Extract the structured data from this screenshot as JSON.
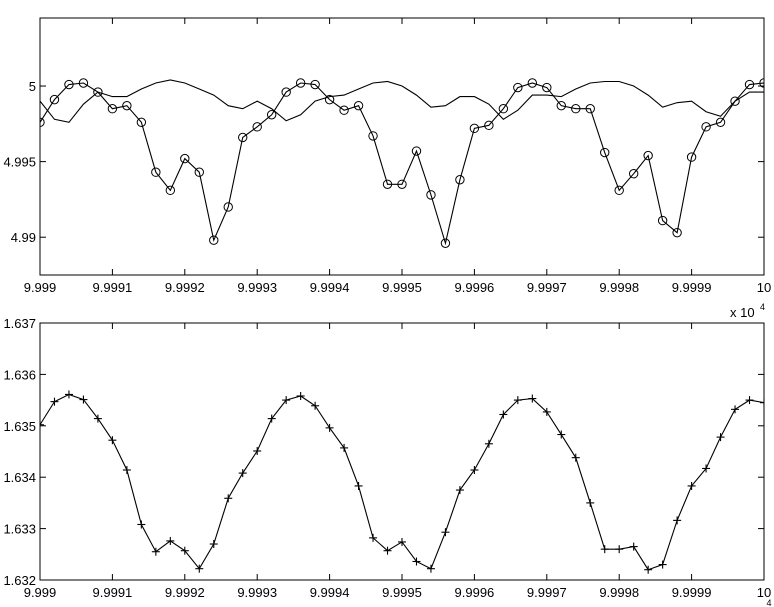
{
  "chart_data": [
    {
      "type": "line",
      "title": "",
      "xlabel": "",
      "ylabel": "",
      "xlim": [
        99990,
        100000
      ],
      "ylim": [
        4.9875,
        5.0045
      ],
      "xticks": [
        99990,
        99991,
        99992,
        99993,
        99994,
        99995,
        99996,
        99997,
        99998,
        99999,
        100000
      ],
      "xtick_labels": [
        "9.999",
        "9.9991",
        "9.9992",
        "9.9993",
        "9.9994",
        "9.9995",
        "9.9996",
        "9.9997",
        "9.9998",
        "9.9999",
        "10"
      ],
      "yticks": [
        4.99,
        4.995,
        5.0
      ],
      "ytick_labels": [
        "4.99",
        "4.995",
        "5"
      ],
      "grid": false,
      "series": [
        {
          "marker": "circle",
          "x": [
            99990.0,
            99990.2,
            99990.4,
            99990.6,
            99990.8,
            99991.0,
            99991.2,
            99991.4,
            99991.6,
            99991.8,
            99992.0,
            99992.2,
            99992.4,
            99992.6,
            99992.8,
            99993.0,
            99993.2,
            99993.4,
            99993.6,
            99993.8,
            99994.0,
            99994.2,
            99994.4,
            99994.6,
            99994.8,
            99995.0,
            99995.2,
            99995.4,
            99995.6,
            99995.8,
            99996.0,
            99996.2,
            99996.4,
            99996.6,
            99996.8,
            99997.0,
            99997.2,
            99997.4,
            99997.6,
            99997.8,
            99998.0,
            99998.2,
            99998.4,
            99998.6,
            99998.8,
            99999.0,
            99999.2,
            99999.4,
            99999.6,
            99999.8,
            100000.0
          ],
          "y": [
            4.9976,
            4.9991,
            5.0001,
            5.0002,
            4.9996,
            4.9985,
            4.9987,
            4.9976,
            4.9943,
            4.9931,
            4.9952,
            4.9943,
            4.9898,
            4.992,
            4.9966,
            4.9973,
            4.9981,
            4.9996,
            5.0002,
            5.0001,
            4.9991,
            4.9984,
            4.9987,
            4.9967,
            4.9935,
            4.9935,
            4.9957,
            4.9928,
            4.9896,
            4.9938,
            4.9972,
            4.9974,
            4.9985,
            4.9999,
            5.0002,
            4.9999,
            4.9987,
            4.9985,
            4.9985,
            4.9956,
            4.9931,
            4.9942,
            4.9954,
            4.9911,
            4.9903,
            4.9953,
            4.9973,
            4.9976,
            4.999,
            5.0001,
            5.0002
          ]
        },
        {
          "marker": "none",
          "x": [
            99990.0,
            99990.2,
            99990.4,
            99990.6,
            99990.8,
            99991.0,
            99991.2,
            99991.4,
            99991.6,
            99991.8,
            99992.0,
            99992.2,
            99992.4,
            99992.6,
            99992.8,
            99993.0,
            99993.2,
            99993.4,
            99993.6,
            99993.8,
            99994.0,
            99994.2,
            99994.4,
            99994.6,
            99994.8,
            99995.0,
            99995.2,
            99995.4,
            99995.6,
            99995.8,
            99996.0,
            99996.2,
            99996.4,
            99996.6,
            99996.8,
            99997.0,
            99997.2,
            99997.4,
            99997.6,
            99997.8,
            99998.0,
            99998.2,
            99998.4,
            99998.6,
            99998.8,
            99999.0,
            99999.2,
            99999.4,
            99999.6,
            99999.8,
            100000.0
          ],
          "y": [
            4.999,
            4.9978,
            4.9976,
            4.9988,
            4.9996,
            4.9993,
            4.9993,
            4.9998,
            5.0002,
            5.0004,
            5.0002,
            4.9998,
            4.9994,
            4.9987,
            4.9985,
            4.999,
            4.9985,
            4.9977,
            4.9981,
            4.999,
            4.9993,
            4.9994,
            4.9998,
            5.0002,
            5.0003,
            5.0,
            4.9994,
            4.9986,
            4.9987,
            4.9993,
            4.9993,
            4.9988,
            4.9978,
            4.9984,
            4.9994,
            4.9994,
            4.9993,
            4.9998,
            5.0002,
            5.0003,
            5.0003,
            5.0,
            4.9994,
            4.9986,
            4.9989,
            4.999,
            4.9983,
            4.998,
            4.999,
            4.9996,
            4.9996
          ]
        }
      ]
    },
    {
      "type": "line",
      "title": "",
      "xlabel": "",
      "ylabel": "",
      "xlim": [
        99990,
        100000
      ],
      "ylim": [
        1.632,
        1.637
      ],
      "xticks": [
        99990,
        99991,
        99992,
        99993,
        99994,
        99995,
        99996,
        99997,
        99998,
        99999,
        100000
      ],
      "xtick_labels": [
        "9.999",
        "9.9991",
        "9.9992",
        "9.9993",
        "9.9994",
        "9.9995",
        "9.9996",
        "9.9997",
        "9.9998",
        "9.9999",
        "10"
      ],
      "yticks": [
        1.632,
        1.633,
        1.634,
        1.635,
        1.636,
        1.637
      ],
      "ytick_labels": [
        "1.632",
        "1.633",
        "1.634",
        "1.635",
        "1.636",
        "1.637"
      ],
      "x_multiplier_label": "x 10",
      "x_multiplier_exponent": "4",
      "grid": false,
      "series": [
        {
          "marker": "plus",
          "x": [
            99990.0,
            99990.2,
            99990.4,
            99990.6,
            99990.8,
            99991.0,
            99991.2,
            99991.4,
            99991.6,
            99991.8,
            99992.0,
            99992.2,
            99992.4,
            99992.6,
            99992.8,
            99993.0,
            99993.2,
            99993.4,
            99993.6,
            99993.8,
            99994.0,
            99994.2,
            99994.4,
            99994.6,
            99994.8,
            99995.0,
            99995.2,
            99995.4,
            99995.6,
            99995.8,
            99996.0,
            99996.2,
            99996.4,
            99996.6,
            99996.8,
            99997.0,
            99997.2,
            99997.4,
            99997.6,
            99997.8,
            99998.0,
            99998.2,
            99998.4,
            99998.6,
            99998.8,
            99999.0,
            99999.2,
            99999.4,
            99999.6,
            99999.8,
            100000.0
          ],
          "y": [
            1.63502,
            1.63547,
            1.63561,
            1.63551,
            1.63514,
            1.63472,
            1.63414,
            1.63308,
            1.63255,
            1.63276,
            1.63257,
            1.63222,
            1.6327,
            1.63359,
            1.63408,
            1.63451,
            1.63514,
            1.6355,
            1.63558,
            1.63539,
            1.63496,
            1.63457,
            1.63383,
            1.63282,
            1.63257,
            1.63274,
            1.63236,
            1.63222,
            1.63293,
            1.63375,
            1.63414,
            1.63465,
            1.63522,
            1.6355,
            1.63553,
            1.63527,
            1.63483,
            1.63438,
            1.6335,
            1.6326,
            1.6326,
            1.63265,
            1.6322,
            1.6323,
            1.63316,
            1.63383,
            1.63417,
            1.63478,
            1.63532,
            1.6355,
            1.63545
          ]
        }
      ]
    }
  ]
}
